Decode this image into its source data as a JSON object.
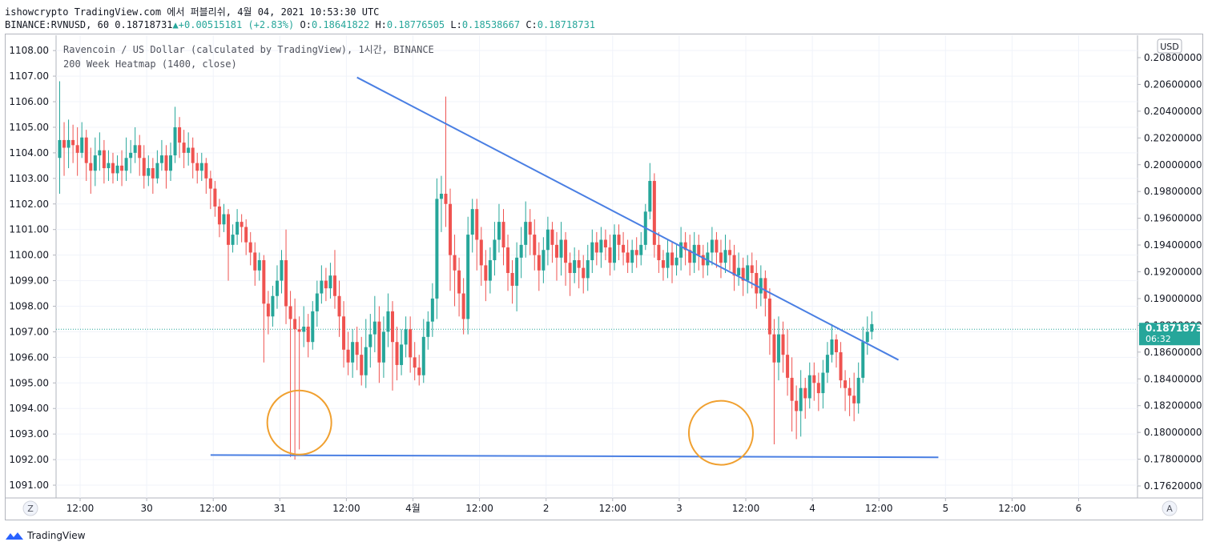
{
  "header": {
    "line1": "ishowcrypto TradingView.com 에서 퍼블리쉬, 4월 04, 2021 10:53:30 UTC",
    "symbol": "BINANCE:RVNUSD, 60",
    "last": "0.18718731",
    "change": "+0.00515181 (+2.83%)",
    "o_label": "O:",
    "o": "0.18641822",
    "h_label": "H:",
    "h": "0.18776505",
    "l_label": "L:",
    "l": "0.18538667",
    "c_label": "C:",
    "c": "0.18718731"
  },
  "legend": {
    "title": "Ravencoin / US Dollar (calculated by TradingView), 1시간, BINANCE",
    "indicator": "200 Week Heatmap (1400, close)"
  },
  "controls": {
    "currency": "USD",
    "z_button": "Z",
    "a_button": "A"
  },
  "footer": {
    "brand": "TradingView"
  },
  "chart_data": {
    "type": "candlestick",
    "timeframe": "1시간",
    "price_axis_right": {
      "labels": [
        "0.20800000",
        "0.20600000",
        "0.20400000",
        "0.20200000",
        "0.20000000",
        "0.19800000",
        "0.19600000",
        "0.19400000",
        "0.19200000",
        "0.19000000",
        "0.18800000",
        "0.18600000",
        "0.18400000",
        "0.18200000",
        "0.18000000",
        "0.17800000",
        "0.17620000"
      ],
      "last_price": "0.18718731",
      "countdown": "06:32"
    },
    "indicator_axis_left": {
      "labels": [
        "1108.00",
        "1107.00",
        "1106.00",
        "1105.00",
        "1104.00",
        "1103.00",
        "1102.00",
        "1101.00",
        "1100.00",
        "1099.00",
        "1098.00",
        "1097.00",
        "1096.00",
        "1095.00",
        "1094.00",
        "1093.00",
        "1092.00",
        "1091.00"
      ],
      "range": [
        1090.5,
        1108.6
      ]
    },
    "time_axis": {
      "labels": [
        "12:00",
        "30",
        "12:00",
        "31",
        "12:00",
        "4월",
        "12:00",
        "2",
        "12:00",
        "3",
        "12:00",
        "4",
        "12:00",
        "5",
        "12:00",
        "6"
      ]
    },
    "ylim": [
      1090.5,
      1108.6
    ],
    "candles": [
      [
        1103.8,
        1104.5,
        1106.8,
        1102.4
      ],
      [
        1104.5,
        1104.2,
        1105.2,
        1103.1
      ],
      [
        1104.2,
        1104.5,
        1105.3,
        1103.4
      ],
      [
        1104.5,
        1104.3,
        1105.1,
        1103.6
      ],
      [
        1104.3,
        1104.0,
        1105.0,
        1103.1
      ],
      [
        1104.0,
        1104.6,
        1105.2,
        1103.8
      ],
      [
        1104.6,
        1103.6,
        1104.9,
        1102.9
      ],
      [
        1103.6,
        1103.3,
        1104.2,
        1102.4
      ],
      [
        1103.3,
        1103.9,
        1104.6,
        1102.7
      ],
      [
        1103.9,
        1104.1,
        1104.8,
        1103.3
      ],
      [
        1104.1,
        1103.4,
        1104.5,
        1102.8
      ],
      [
        1103.4,
        1103.6,
        1104.1,
        1102.9
      ],
      [
        1103.6,
        1103.2,
        1104.0,
        1102.8
      ],
      [
        1103.2,
        1103.5,
        1103.9,
        1102.9
      ],
      [
        1103.5,
        1103.3,
        1104.1,
        1102.7
      ],
      [
        1103.3,
        1103.8,
        1104.6,
        1102.9
      ],
      [
        1103.8,
        1104.0,
        1104.5,
        1103.2
      ],
      [
        1104.0,
        1104.3,
        1105.0,
        1103.6
      ],
      [
        1104.3,
        1103.8,
        1104.7,
        1103.1
      ],
      [
        1103.8,
        1103.1,
        1104.3,
        1102.6
      ],
      [
        1103.1,
        1103.4,
        1103.9,
        1102.7
      ],
      [
        1103.4,
        1103.0,
        1103.8,
        1102.4
      ],
      [
        1103.0,
        1103.6,
        1104.1,
        1102.8
      ],
      [
        1103.6,
        1103.9,
        1104.5,
        1103.3
      ],
      [
        1103.9,
        1103.3,
        1104.3,
        1102.6
      ],
      [
        1103.3,
        1103.9,
        1104.4,
        1102.9
      ],
      [
        1103.9,
        1105.0,
        1105.8,
        1103.6
      ],
      [
        1105.0,
        1104.4,
        1105.4,
        1103.8
      ],
      [
        1104.4,
        1104.0,
        1104.9,
        1103.4
      ],
      [
        1104.0,
        1104.2,
        1104.8,
        1103.5
      ],
      [
        1104.2,
        1103.6,
        1104.6,
        1103.0
      ],
      [
        1103.6,
        1103.3,
        1104.0,
        1102.8
      ],
      [
        1103.3,
        1103.6,
        1104.0,
        1102.9
      ],
      [
        1103.6,
        1103.0,
        1103.8,
        1102.4
      ],
      [
        1103.0,
        1102.6,
        1103.3,
        1101.8
      ],
      [
        1102.6,
        1101.9,
        1102.9,
        1101.5
      ],
      [
        1101.9,
        1101.2,
        1102.2,
        1100.7
      ],
      [
        1101.2,
        1101.6,
        1102.0,
        1100.9
      ],
      [
        1101.6,
        1100.4,
        1101.8,
        1099.0
      ],
      [
        1100.4,
        1100.8,
        1101.2,
        1100.1
      ],
      [
        1100.8,
        1101.3,
        1101.8,
        1100.4
      ],
      [
        1101.3,
        1101.1,
        1101.6,
        1100.5
      ],
      [
        1101.1,
        1100.5,
        1101.4,
        1100.0
      ],
      [
        1100.5,
        1100.1,
        1100.9,
        1099.6
      ],
      [
        1100.1,
        1099.4,
        1100.5,
        1098.8
      ],
      [
        1099.4,
        1099.8,
        1100.1,
        1099.0
      ],
      [
        1099.8,
        1098.1,
        1100.0,
        1095.8
      ],
      [
        1098.1,
        1097.6,
        1098.6,
        1096.9
      ],
      [
        1097.6,
        1098.4,
        1098.8,
        1097.2
      ],
      [
        1098.4,
        1099.0,
        1099.6,
        1097.9
      ],
      [
        1099.0,
        1099.8,
        1100.2,
        1098.5
      ],
      [
        1099.8,
        1098.0,
        1101.0,
        1097.3
      ],
      [
        1098.0,
        1097.5,
        1098.6,
        1092.1
      ],
      [
        1097.5,
        1097.1,
        1098.3,
        1092.0
      ],
      [
        1097.1,
        1097.0,
        1097.6,
        1092.4
      ],
      [
        1097.0,
        1097.2,
        1098.0,
        1096.4
      ],
      [
        1097.2,
        1096.6,
        1097.7,
        1096.0
      ],
      [
        1096.6,
        1097.8,
        1098.2,
        1096.3
      ],
      [
        1097.8,
        1098.5,
        1099.0,
        1097.2
      ],
      [
        1098.5,
        1099.0,
        1099.6,
        1098.1
      ],
      [
        1099.0,
        1098.7,
        1099.5,
        1098.2
      ],
      [
        1098.7,
        1099.2,
        1099.7,
        1098.3
      ],
      [
        1099.2,
        1098.4,
        1100.2,
        1097.9
      ],
      [
        1098.4,
        1097.6,
        1099.0,
        1096.8
      ],
      [
        1097.6,
        1096.3,
        1098.2,
        1095.6
      ],
      [
        1096.3,
        1095.8,
        1097.0,
        1095.3
      ],
      [
        1095.8,
        1096.6,
        1097.1,
        1095.2
      ],
      [
        1096.6,
        1096.1,
        1097.2,
        1095.5
      ],
      [
        1096.1,
        1095.3,
        1096.8,
        1094.9
      ],
      [
        1095.3,
        1096.4,
        1097.5,
        1094.8
      ],
      [
        1096.4,
        1096.9,
        1097.7,
        1095.6
      ],
      [
        1096.9,
        1097.4,
        1098.4,
        1096.2
      ],
      [
        1097.4,
        1095.8,
        1098.0,
        1095.0
      ],
      [
        1095.8,
        1097.0,
        1097.6,
        1095.2
      ],
      [
        1097.0,
        1097.8,
        1098.5,
        1096.4
      ],
      [
        1097.8,
        1096.6,
        1098.2,
        1094.7
      ],
      [
        1096.6,
        1095.7,
        1097.2,
        1095.1
      ],
      [
        1095.7,
        1096.5,
        1097.1,
        1095.3
      ],
      [
        1096.5,
        1097.1,
        1097.6,
        1096.0
      ],
      [
        1097.1,
        1096.0,
        1097.6,
        1095.4
      ],
      [
        1096.0,
        1095.6,
        1096.6,
        1095.1
      ],
      [
        1095.6,
        1095.3,
        1096.1,
        1094.9
      ],
      [
        1095.3,
        1096.8,
        1097.5,
        1095.0
      ],
      [
        1096.8,
        1097.4,
        1097.8,
        1096.3
      ],
      [
        1097.4,
        1098.3,
        1098.9,
        1096.8
      ],
      [
        1098.3,
        1102.2,
        1103.0,
        1097.5
      ],
      [
        1102.2,
        1102.4,
        1103.1,
        1100.9
      ],
      [
        1102.4,
        1102.0,
        1106.2,
        1101.1
      ],
      [
        1102.0,
        1100.0,
        1102.6,
        1098.6
      ],
      [
        1100.0,
        1099.4,
        1100.8,
        1098.0
      ],
      [
        1099.4,
        1098.5,
        1099.9,
        1097.6
      ],
      [
        1098.5,
        1097.5,
        1099.1,
        1096.9
      ],
      [
        1097.5,
        1100.8,
        1101.5,
        1096.9
      ],
      [
        1100.8,
        1101.8,
        1102.2,
        1100.1
      ],
      [
        1101.8,
        1100.6,
        1102.2,
        1099.4
      ],
      [
        1100.6,
        1099.6,
        1101.1,
        1098.8
      ],
      [
        1099.6,
        1099.0,
        1100.2,
        1098.2
      ],
      [
        1099.0,
        1099.8,
        1100.3,
        1098.5
      ],
      [
        1099.8,
        1100.6,
        1101.3,
        1099.2
      ],
      [
        1100.6,
        1101.3,
        1102.0,
        1100.1
      ],
      [
        1101.3,
        1100.3,
        1101.8,
        1099.6
      ],
      [
        1100.3,
        1099.3,
        1100.8,
        1098.6
      ],
      [
        1099.3,
        1098.8,
        1099.8,
        1098.1
      ],
      [
        1098.8,
        1099.9,
        1100.5,
        1097.8
      ],
      [
        1099.9,
        1100.4,
        1101.1,
        1099.1
      ],
      [
        1100.4,
        1101.3,
        1102.1,
        1099.9
      ],
      [
        1101.3,
        1100.8,
        1101.8,
        1100.0
      ],
      [
        1100.8,
        1100.0,
        1101.4,
        1099.4
      ],
      [
        1100.0,
        1099.4,
        1100.5,
        1098.6
      ],
      [
        1099.4,
        1100.2,
        1100.7,
        1098.9
      ],
      [
        1100.2,
        1101.0,
        1101.5,
        1099.6
      ],
      [
        1101.0,
        1100.4,
        1101.3,
        1099.7
      ],
      [
        1100.4,
        1099.9,
        1100.9,
        1099.0
      ],
      [
        1099.9,
        1100.6,
        1101.3,
        1099.2
      ],
      [
        1100.6,
        1099.7,
        1100.9,
        1098.8
      ],
      [
        1099.7,
        1099.3,
        1100.1,
        1098.4
      ],
      [
        1099.3,
        1099.8,
        1100.3,
        1098.9
      ],
      [
        1099.8,
        1099.5,
        1100.2,
        1098.7
      ],
      [
        1099.5,
        1099.1,
        1100.0,
        1098.5
      ],
      [
        1099.1,
        1099.8,
        1100.4,
        1098.6
      ],
      [
        1099.8,
        1100.5,
        1101.0,
        1099.3
      ],
      [
        1100.5,
        1100.1,
        1100.9,
        1099.6
      ],
      [
        1100.1,
        1100.6,
        1101.1,
        1099.5
      ],
      [
        1100.6,
        1100.3,
        1101.0,
        1099.8
      ],
      [
        1100.3,
        1099.7,
        1100.8,
        1099.2
      ],
      [
        1099.7,
        1100.8,
        1101.2,
        1099.4
      ],
      [
        1100.8,
        1100.4,
        1101.2,
        1099.8
      ],
      [
        1100.4,
        1100.1,
        1100.9,
        1099.6
      ],
      [
        1100.1,
        1099.7,
        1100.6,
        1099.3
      ],
      [
        1099.7,
        1100.2,
        1100.6,
        1099.3
      ],
      [
        1100.2,
        1100.0,
        1100.7,
        1099.5
      ],
      [
        1100.0,
        1100.4,
        1100.9,
        1099.6
      ],
      [
        1100.4,
        1101.7,
        1102.0,
        1100.2
      ],
      [
        1101.7,
        1102.9,
        1103.6,
        1101.4
      ],
      [
        1102.9,
        1100.4,
        1103.2,
        1099.9
      ],
      [
        1100.4,
        1099.8,
        1100.9,
        1099.3
      ],
      [
        1099.8,
        1099.5,
        1100.2,
        1099.0
      ],
      [
        1099.5,
        1100.1,
        1100.6,
        1099.1
      ],
      [
        1100.1,
        1099.6,
        1100.5,
        1098.9
      ],
      [
        1099.6,
        1099.9,
        1100.4,
        1099.2
      ],
      [
        1099.9,
        1100.5,
        1101.1,
        1099.4
      ],
      [
        1100.5,
        1100.2,
        1100.9,
        1099.6
      ],
      [
        1100.2,
        1099.7,
        1100.8,
        1099.2
      ],
      [
        1099.7,
        1100.4,
        1100.9,
        1099.3
      ],
      [
        1100.4,
        1100.0,
        1100.8,
        1099.4
      ],
      [
        1100.0,
        1099.6,
        1100.4,
        1099.1
      ],
      [
        1099.6,
        1100.1,
        1100.5,
        1099.2
      ],
      [
        1100.1,
        1100.6,
        1101.1,
        1099.6
      ],
      [
        1100.6,
        1100.1,
        1100.9,
        1099.5
      ],
      [
        1100.1,
        1099.7,
        1100.6,
        1099.1
      ],
      [
        1099.7,
        1100.2,
        1100.8,
        1099.3
      ],
      [
        1100.2,
        1100.0,
        1100.6,
        1099.4
      ],
      [
        1100.0,
        1099.2,
        1100.4,
        1098.6
      ],
      [
        1099.2,
        1099.5,
        1100.1,
        1098.8
      ],
      [
        1099.5,
        1099.0,
        1099.9,
        1098.4
      ],
      [
        1099.0,
        1099.6,
        1100.0,
        1098.5
      ],
      [
        1099.6,
        1099.3,
        1100.1,
        1098.7
      ],
      [
        1099.3,
        1098.5,
        1099.8,
        1097.9
      ],
      [
        1098.5,
        1099.1,
        1099.6,
        1098.0
      ],
      [
        1099.1,
        1098.3,
        1099.4,
        1097.6
      ],
      [
        1098.3,
        1096.9,
        1098.7,
        1096.1
      ],
      [
        1096.9,
        1095.8,
        1097.5,
        1092.6
      ],
      [
        1095.8,
        1096.9,
        1097.6,
        1095.1
      ],
      [
        1096.9,
        1096.1,
        1097.4,
        1095.4
      ],
      [
        1096.1,
        1095.2,
        1097.1,
        1094.5
      ],
      [
        1095.2,
        1094.3,
        1096.0,
        1093.1
      ],
      [
        1094.3,
        1093.9,
        1094.9,
        1092.8
      ],
      [
        1093.9,
        1094.8,
        1095.5,
        1092.9
      ],
      [
        1094.8,
        1094.4,
        1095.2,
        1093.6
      ],
      [
        1094.4,
        1095.3,
        1095.8,
        1094.0
      ],
      [
        1095.3,
        1095.0,
        1095.8,
        1094.3
      ],
      [
        1095.0,
        1094.6,
        1095.4,
        1093.9
      ],
      [
        1094.6,
        1095.4,
        1095.9,
        1094.0
      ],
      [
        1095.4,
        1096.1,
        1096.6,
        1095.0
      ],
      [
        1096.1,
        1096.7,
        1097.3,
        1095.8
      ],
      [
        1096.7,
        1096.2,
        1096.9,
        1095.6
      ],
      [
        1096.2,
        1095.1,
        1096.6,
        1094.8
      ],
      [
        1095.1,
        1094.8,
        1095.5,
        1093.9
      ],
      [
        1094.8,
        1094.5,
        1095.2,
        1093.7
      ],
      [
        1094.5,
        1094.2,
        1095.4,
        1093.5
      ],
      [
        1094.2,
        1095.2,
        1095.8,
        1093.8
      ],
      [
        1095.2,
        1096.6,
        1097.2,
        1095.0
      ],
      [
        1096.6,
        1097.0,
        1097.6,
        1096.1
      ],
      [
        1097.0,
        1097.3,
        1097.8,
        1096.7
      ]
    ],
    "annotations": {
      "trendline_descending": {
        "from": {
          "candle": 67,
          "value": 1106.95
        },
        "to": {
          "candle": 189,
          "value": 1095.9
        },
        "color": "#4a7fe3"
      },
      "trendline_support": {
        "from": {
          "candle": 34,
          "value": 1092.18
        },
        "to": {
          "candle": 198,
          "value": 1092.09
        },
        "color": "#4a7fe3"
      },
      "circles": [
        {
          "center": {
            "candle": 54,
            "value": 1093.45
          },
          "color": "#f0a030"
        },
        {
          "center": {
            "candle": 149,
            "value": 1093.05
          },
          "color": "#f0a030"
        }
      ],
      "last_price_line": {
        "value": 1097.1,
        "color": "#26a69a"
      }
    },
    "colors": {
      "up": "#26a69a",
      "down": "#ef5350",
      "grid": "#f0f3fa",
      "axis_text": "#131722"
    }
  }
}
